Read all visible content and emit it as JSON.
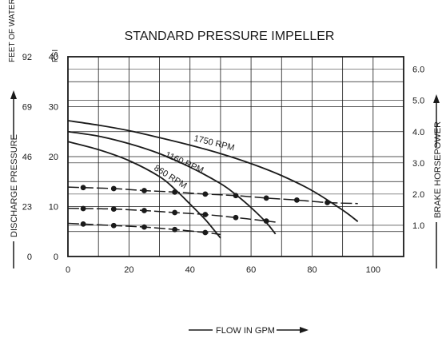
{
  "chart_data": {
    "type": "line",
    "title": "STANDARD PRESSURE IMPELLER",
    "xlabel": "FLOW IN GPM",
    "ylabel_left": "DISCHARGE PRESSURE",
    "ylabel_right": "BRAKE HORSEPOWER",
    "left_unit_feet": "FEET OF WATER",
    "left_unit_psi": "PSI",
    "xlim": [
      0,
      110
    ],
    "ylim": [
      0,
      40
    ],
    "grid": true,
    "x_ticks": [
      0,
      20,
      40,
      60,
      80,
      100
    ],
    "psi_ticks": [
      0,
      10,
      20,
      30,
      40
    ],
    "feet_ticks": [
      "0",
      "23",
      "46",
      "69",
      "92"
    ],
    "hp_ticks": [
      "1.0",
      "2.0",
      "3.0",
      "4.0",
      "5.0",
      "6.0"
    ],
    "hp_tick_psi": [
      6.25,
      12.5,
      18.75,
      25,
      31.25,
      37.5
    ],
    "pressure_curves": [
      {
        "name": "1750 RPM",
        "x": [
          0,
          10,
          20,
          30,
          40,
          50,
          60,
          70,
          80,
          90,
          95
        ],
        "psi": [
          27.2,
          26.3,
          25.2,
          23.8,
          22.3,
          20.6,
          18.6,
          16.2,
          13.2,
          9.3,
          7.0
        ]
      },
      {
        "name": "1160 RPM",
        "x": [
          0,
          10,
          20,
          30,
          40,
          50,
          55,
          60,
          65,
          68
        ],
        "psi": [
          25.0,
          24.1,
          22.6,
          20.6,
          17.9,
          14.6,
          12.4,
          9.8,
          6.8,
          4.5
        ]
      },
      {
        "name": "860 RPM",
        "x": [
          0,
          10,
          20,
          30,
          35,
          40,
          45,
          48,
          50
        ],
        "psi": [
          23.0,
          21.4,
          19.2,
          16.0,
          13.5,
          10.5,
          7.4,
          5.2,
          3.7
        ]
      }
    ],
    "power_curves": [
      {
        "x": [
          5,
          15,
          25,
          35,
          45,
          55,
          65,
          75,
          85
        ],
        "psi": [
          13.8,
          13.6,
          13.2,
          12.9,
          12.5,
          12.2,
          11.7,
          11.3,
          10.8
        ],
        "end_x": 95,
        "end_psi": 10.6
      },
      {
        "x": [
          5,
          15,
          25,
          35,
          45,
          55,
          65
        ],
        "psi": [
          9.6,
          9.5,
          9.2,
          8.8,
          8.4,
          7.8,
          7.1
        ],
        "end_x": 68,
        "end_psi": 6.9
      },
      {
        "x": [
          5,
          15,
          25,
          35,
          45
        ],
        "psi": [
          6.5,
          6.2,
          5.9,
          5.4,
          4.8
        ],
        "end_x": 50,
        "end_psi": 4.4
      }
    ]
  }
}
